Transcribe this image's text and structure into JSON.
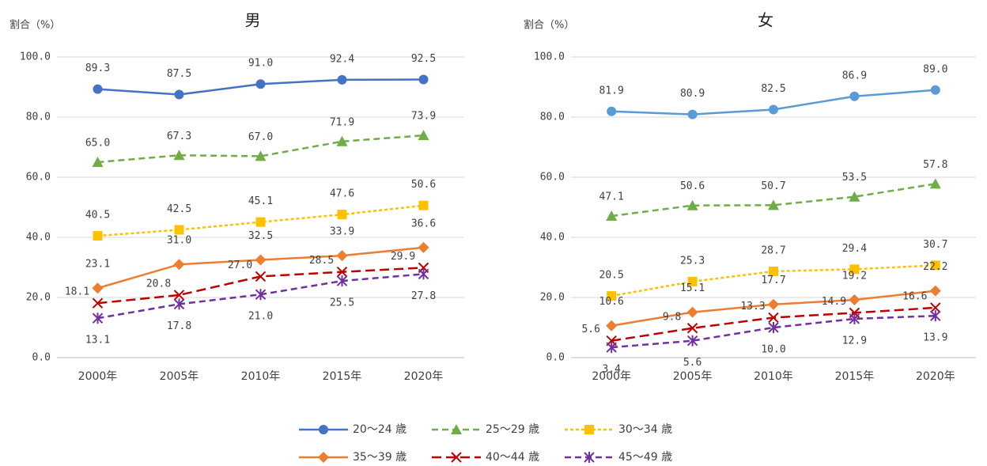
{
  "chart_data": [
    {
      "type": "line",
      "title": "男",
      "y_label": "割合（%）",
      "categories": [
        "2000年",
        "2005年",
        "2010年",
        "2015年",
        "2020年"
      ],
      "ylim": [
        0,
        100
      ],
      "yticks": [
        {
          "value": 0,
          "label": "0.0"
        },
        {
          "value": 20,
          "label": "20.0"
        },
        {
          "value": 40,
          "label": "40.0"
        },
        {
          "value": 60,
          "label": "60.0"
        },
        {
          "value": 80,
          "label": "80.0"
        },
        {
          "value": 100,
          "label": "100.0"
        }
      ],
      "grid": true,
      "series": [
        {
          "name": "20～24 歳",
          "color": "#4472c4",
          "marker": "circle",
          "dash": "solid",
          "values": [
            89.3,
            87.5,
            91.0,
            92.4,
            92.5
          ],
          "value_labels": [
            "89.3",
            "87.5",
            "91.0",
            "92.4",
            "92.5"
          ]
        },
        {
          "name": "25～29 歳",
          "color": "#70ad47",
          "marker": "triangle",
          "dash": "dash",
          "values": [
            65.0,
            67.3,
            67.0,
            71.9,
            73.9
          ],
          "value_labels": [
            "65.0",
            "67.3",
            "67.0",
            "71.9",
            "73.9"
          ]
        },
        {
          "name": "30～34 歳",
          "color": "#ffc000",
          "marker": "square",
          "dash": "dot",
          "values": [
            40.5,
            42.5,
            45.1,
            47.6,
            50.6
          ],
          "value_labels": [
            "40.5",
            "42.5",
            "45.1",
            "47.6",
            "50.6"
          ]
        },
        {
          "name": "35～39 歳",
          "color": "#ed7d31",
          "marker": "diamond",
          "dash": "solid",
          "values": [
            23.1,
            31.0,
            32.5,
            33.9,
            36.6
          ],
          "value_labels": [
            "23.1",
            "31.0",
            "32.5",
            "33.9",
            "36.6"
          ]
        },
        {
          "name": "40～44 歳",
          "color": "#c00000",
          "marker": "x",
          "dash": "longdash",
          "values": [
            18.1,
            20.8,
            27.0,
            28.5,
            29.9
          ],
          "value_labels": [
            "18.1",
            "20.8",
            "27.0",
            "28.5",
            "29.9"
          ]
        },
        {
          "name": "45～49 歳",
          "color": "#7030a0",
          "marker": "star",
          "dash": "dash",
          "values": [
            13.1,
            17.8,
            21.0,
            25.5,
            27.8
          ],
          "value_labels": [
            "13.1",
            "17.8",
            "21.0",
            "25.5",
            "27.8"
          ]
        }
      ]
    },
    {
      "type": "line",
      "title": "女",
      "y_label": "割合（%）",
      "categories": [
        "2000年",
        "2005年",
        "2010年",
        "2015年",
        "2020年"
      ],
      "ylim": [
        0,
        100
      ],
      "yticks": [
        {
          "value": 0,
          "label": "0.0"
        },
        {
          "value": 20,
          "label": "20.0"
        },
        {
          "value": 40,
          "label": "40.0"
        },
        {
          "value": 60,
          "label": "60.0"
        },
        {
          "value": 80,
          "label": "80.0"
        },
        {
          "value": 100,
          "label": "100.0"
        }
      ],
      "grid": true,
      "series": [
        {
          "name": "20～24 歳",
          "color": "#5b9bd5",
          "marker": "circle",
          "dash": "solid",
          "values": [
            81.9,
            80.9,
            82.5,
            86.9,
            89.0
          ],
          "value_labels": [
            "81.9",
            "80.9",
            "82.5",
            "86.9",
            "89.0"
          ]
        },
        {
          "name": "25～29 歳",
          "color": "#70ad47",
          "marker": "triangle",
          "dash": "dash",
          "values": [
            47.1,
            50.6,
            50.7,
            53.5,
            57.8
          ],
          "value_labels": [
            "47.1",
            "50.6",
            "50.7",
            "53.5",
            "57.8"
          ]
        },
        {
          "name": "30～34 歳",
          "color": "#ffc000",
          "marker": "square",
          "dash": "dot",
          "values": [
            20.5,
            25.3,
            28.7,
            29.4,
            30.7
          ],
          "value_labels": [
            "20.5",
            "25.3",
            "28.7",
            "29.4",
            "30.7"
          ]
        },
        {
          "name": "35～39 歳",
          "color": "#ed7d31",
          "marker": "diamond",
          "dash": "solid",
          "values": [
            10.6,
            15.1,
            17.7,
            19.2,
            22.2
          ],
          "value_labels": [
            "10.6",
            "15.1",
            "17.7",
            "19.2",
            "22.2"
          ]
        },
        {
          "name": "40～44 歳",
          "color": "#c00000",
          "marker": "x",
          "dash": "longdash",
          "values": [
            5.6,
            9.8,
            13.3,
            14.9,
            16.6
          ],
          "value_labels": [
            "5.6",
            "9.8",
            "13.3",
            "14.9",
            "16.6"
          ]
        },
        {
          "name": "45～49 歳",
          "color": "#7030a0",
          "marker": "star",
          "dash": "dash",
          "values": [
            3.4,
            5.6,
            10.0,
            12.9,
            13.9
          ],
          "value_labels": [
            "3.4",
            "5.6",
            "10.0",
            "12.9",
            "13.9"
          ]
        }
      ]
    }
  ]
}
